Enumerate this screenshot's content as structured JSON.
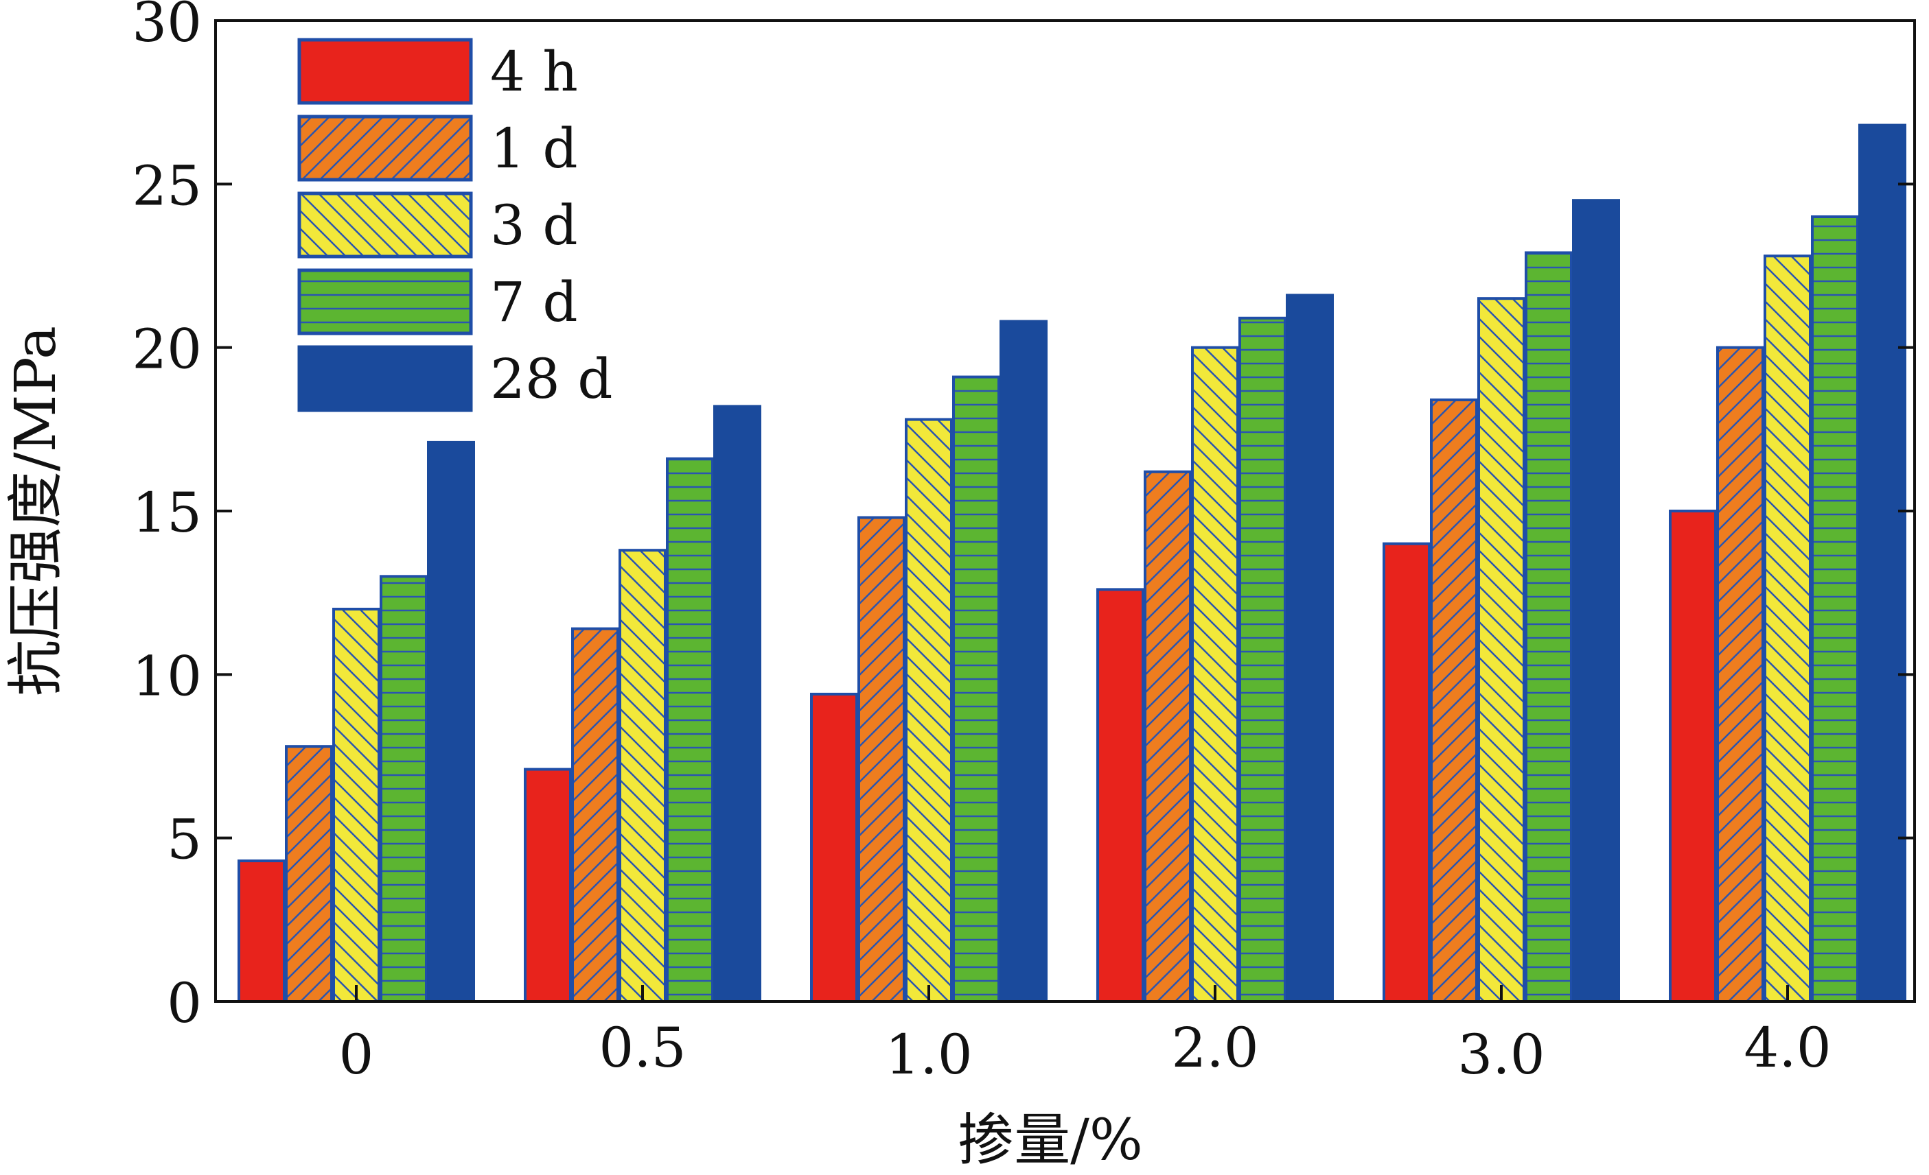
{
  "chart_data": {
    "type": "bar",
    "title": "",
    "xlabel": "掺量/%",
    "ylabel": "抗压强度/MPa",
    "categories": [
      "0",
      "0.5",
      "1.0",
      "2.0",
      "3.0",
      "4.0"
    ],
    "ylim": [
      0,
      30
    ],
    "yticks": [
      0,
      5,
      10,
      15,
      20,
      25,
      30
    ],
    "ytick_labels": [
      "0",
      "5",
      "10",
      "15",
      "20",
      "25",
      "30"
    ],
    "grid": false,
    "legend_position": "top-left",
    "series": [
      {
        "name": "4 h",
        "color": "#e8231c",
        "pattern": "solid",
        "values": [
          4.3,
          7.1,
          9.4,
          12.6,
          14.0,
          15.0
        ]
      },
      {
        "name": "1 d",
        "color": "#ee7d1f",
        "pattern": "diagonal-forward",
        "values": [
          7.8,
          11.4,
          14.8,
          16.2,
          18.4,
          20.0
        ]
      },
      {
        "name": "3 d",
        "color": "#f2e83a",
        "pattern": "diagonal-backward",
        "values": [
          12.0,
          13.8,
          17.8,
          20.0,
          21.5,
          22.8
        ]
      },
      {
        "name": "7 d",
        "color": "#5cb531",
        "pattern": "horizontal-lines",
        "values": [
          13.0,
          16.6,
          19.1,
          20.9,
          22.9,
          24.0
        ]
      },
      {
        "name": "28 d",
        "color": "#1a4a9c",
        "pattern": "solid",
        "values": [
          17.1,
          18.2,
          20.8,
          21.6,
          24.5,
          26.8
        ]
      }
    ],
    "colors": {
      "outline": "#1f4ea8",
      "hatch": "#2a55b0",
      "axis": "#111111"
    }
  }
}
